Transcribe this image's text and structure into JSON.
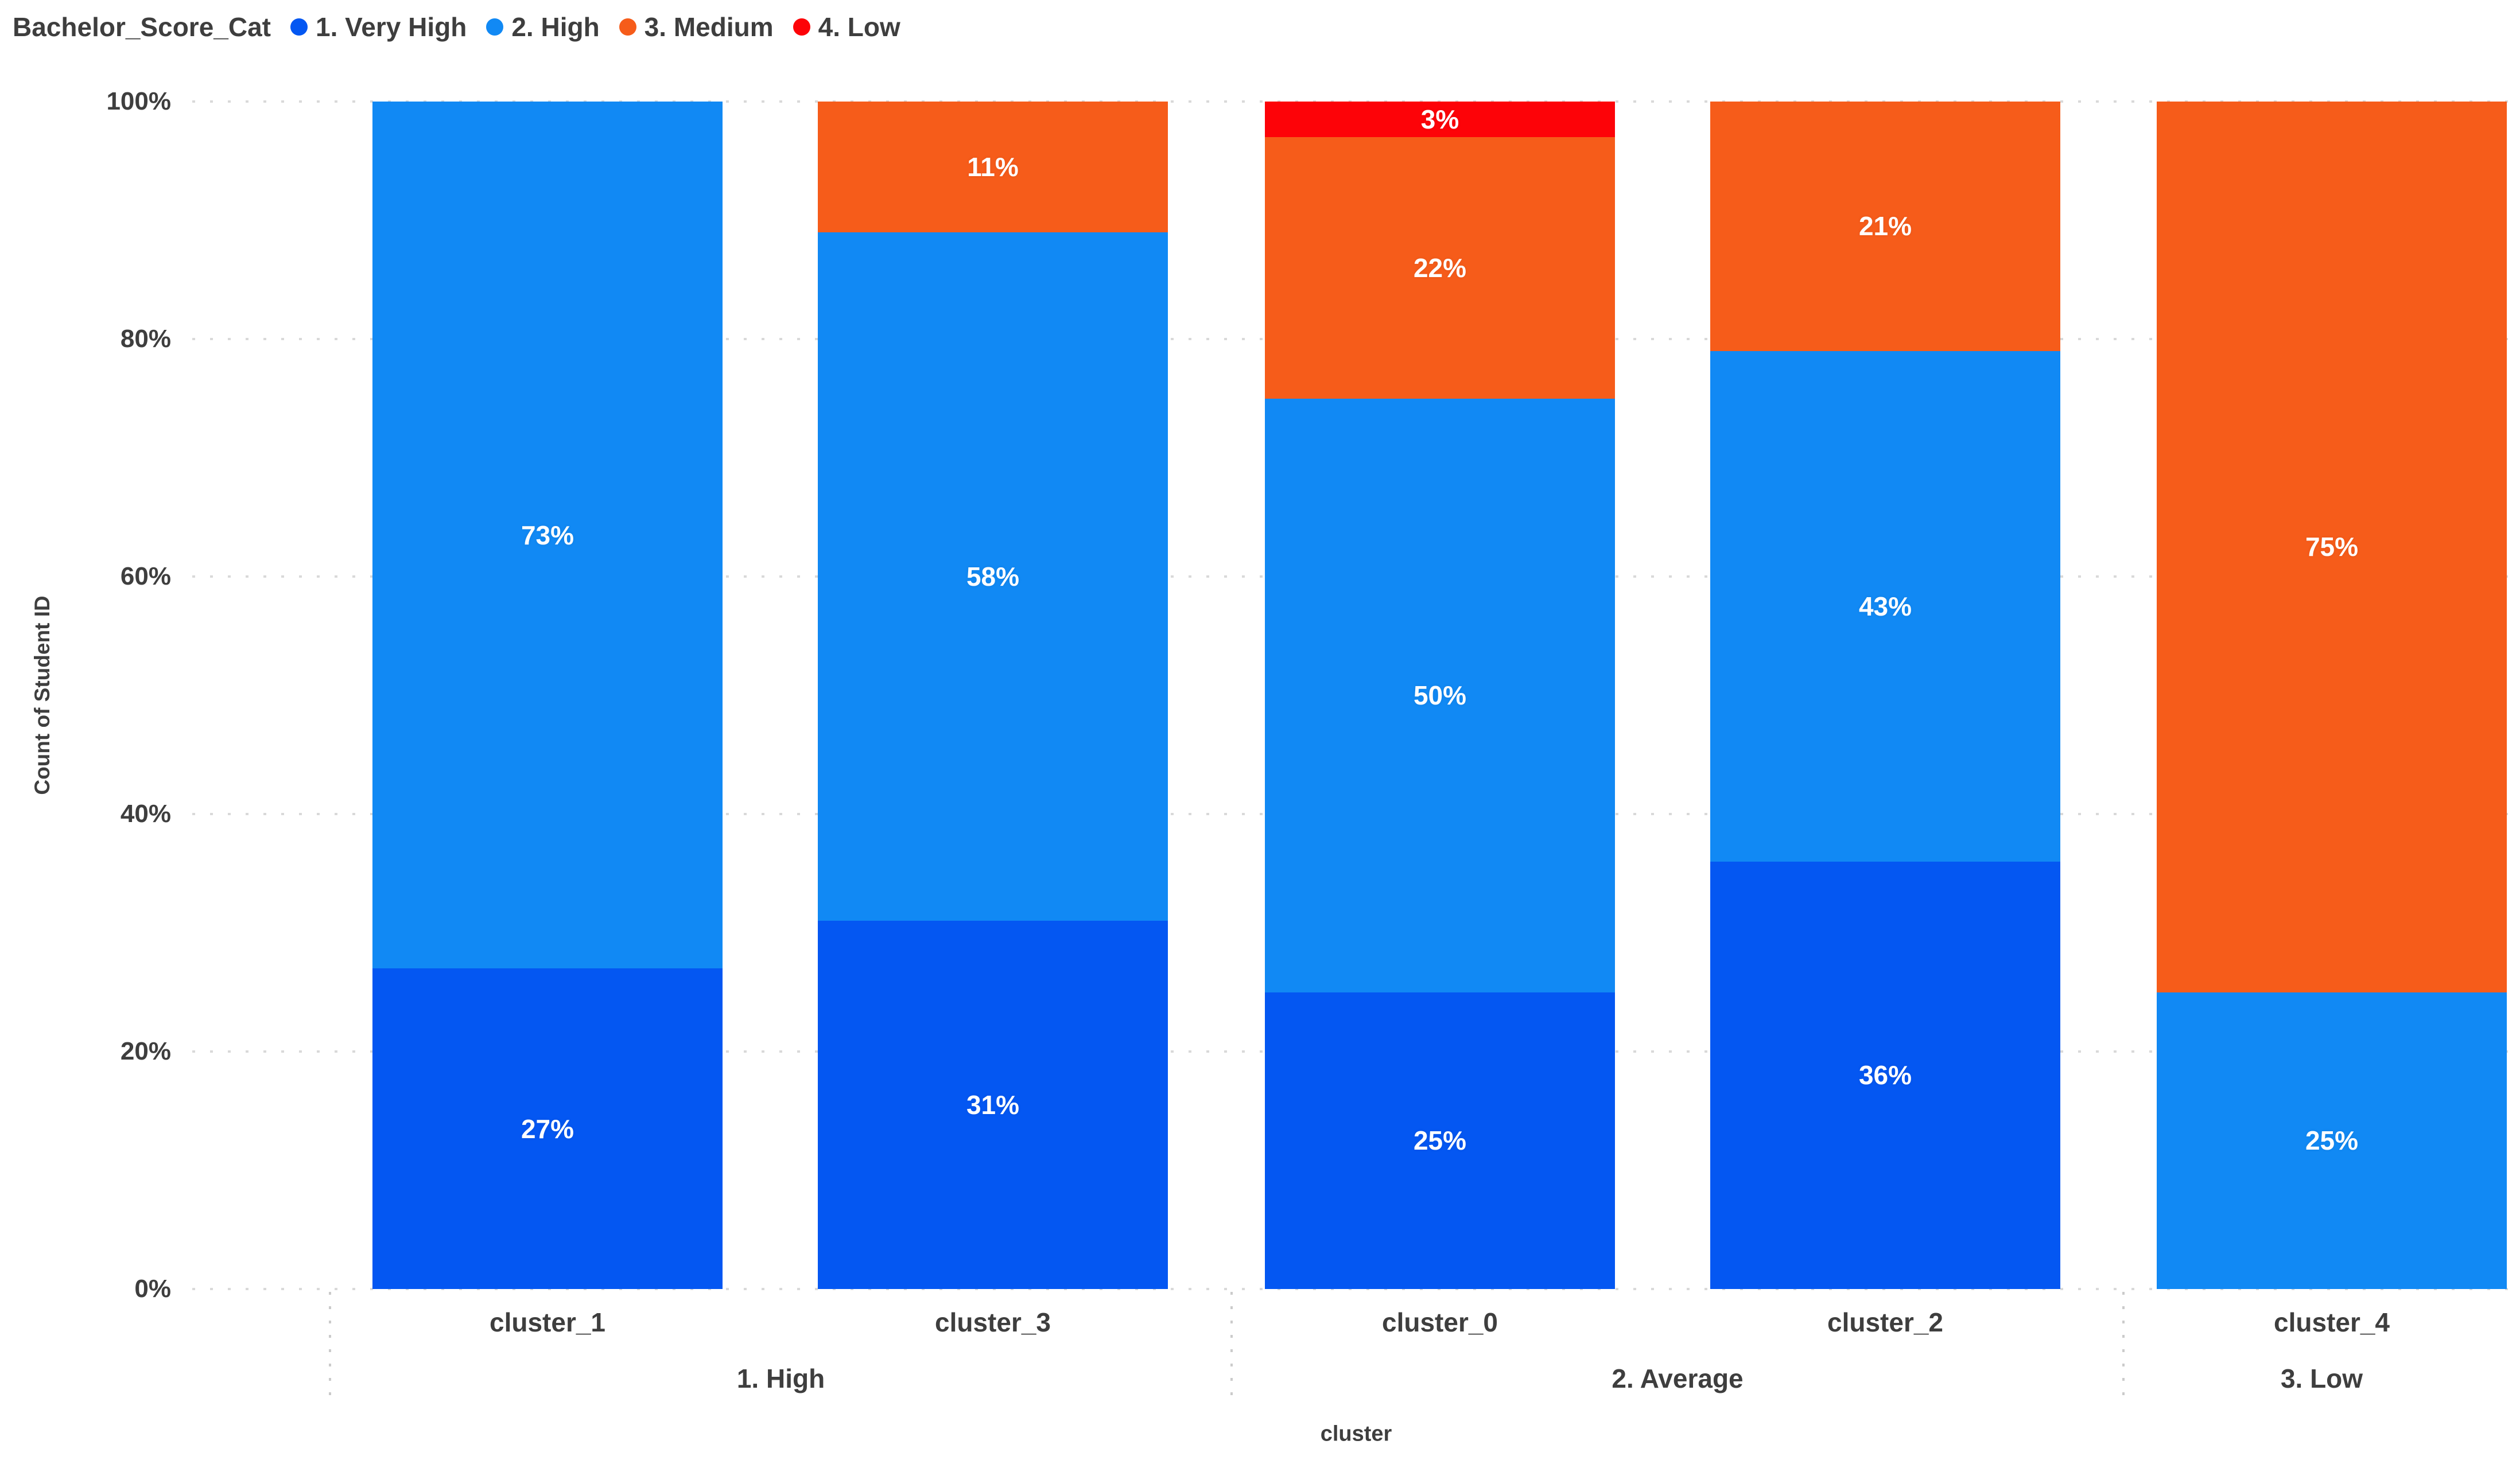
{
  "legend": {
    "title": "Bachelor_Score_Cat",
    "items": [
      {
        "label": "1. Very High",
        "color": "#0457F2"
      },
      {
        "label": "2. High",
        "color": "#1189F4"
      },
      {
        "label": "3. Medium",
        "color": "#F65C1A"
      },
      {
        "label": "4. Low",
        "color": "#FD0308"
      }
    ]
  },
  "y_axis": {
    "title": "Count of Student ID",
    "ticks": [
      "100%",
      "80%",
      "60%",
      "40%",
      "20%",
      "0%"
    ]
  },
  "x_axis": {
    "title": "cluster",
    "category_labels": [
      "cluster_1",
      "cluster_3",
      "cluster_0",
      "cluster_2",
      "cluster_4"
    ],
    "group_labels": [
      "1. High",
      "2. Average",
      "3. Low"
    ]
  },
  "colors": {
    "text": "#3E3E3E",
    "grid": "#D9D9D9",
    "separator": "#CBCBCB",
    "background": "#FFFFFF",
    "data_label": "#FFFFFF"
  },
  "chart_data": {
    "type": "bar",
    "stacked": true,
    "percent_stacked": true,
    "categories": [
      "cluster_1",
      "cluster_3",
      "cluster_0",
      "cluster_2",
      "cluster_4"
    ],
    "groups": [
      {
        "label": "1. High",
        "categories": [
          "cluster_1",
          "cluster_3"
        ]
      },
      {
        "label": "2. Average",
        "categories": [
          "cluster_0",
          "cluster_2"
        ]
      },
      {
        "label": "3. Low",
        "categories": [
          "cluster_4"
        ]
      }
    ],
    "series": [
      {
        "name": "1. Very High",
        "color": "#0457F2",
        "values": [
          27,
          31,
          25,
          36,
          0
        ]
      },
      {
        "name": "2. High",
        "color": "#1189F4",
        "values": [
          73,
          58,
          50,
          43,
          25
        ]
      },
      {
        "name": "3. Medium",
        "color": "#F65C1A",
        "values": [
          0,
          11,
          22,
          21,
          75
        ]
      },
      {
        "name": "4. Low",
        "color": "#FD0308",
        "values": [
          0,
          0,
          3,
          0,
          0
        ]
      }
    ],
    "value_suffix": "%",
    "xlabel": "cluster",
    "ylabel": "Count of Student ID",
    "ylim": [
      0,
      100
    ],
    "yticks": [
      "0%",
      "20%",
      "40%",
      "60%",
      "80%",
      "100%"
    ],
    "grid": "horizontal-dotted",
    "legend_position": "top-left"
  }
}
